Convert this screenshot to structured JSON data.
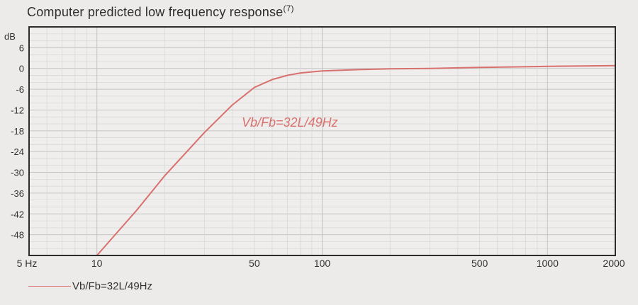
{
  "title": {
    "text": "Computer predicted low frequency response",
    "superscript": "(7)"
  },
  "chart_data": {
    "type": "line",
    "title": "Computer predicted low frequency response(7)",
    "ylabel": "dB",
    "xlabel": "",
    "x_scale": "log",
    "xlim": [
      5,
      2000
    ],
    "ylim": [
      -54,
      12
    ],
    "grid": true,
    "legend_placement": "bottom-left",
    "y_ticks": [
      6,
      0,
      -6,
      -12,
      -18,
      -24,
      -30,
      -36,
      -42,
      -48
    ],
    "y_tick_labels": [
      "6",
      "0",
      "-6",
      "-12",
      "-18",
      "-24",
      "-30",
      "-36",
      "-42",
      "-48"
    ],
    "x_ticks": [
      5,
      10,
      50,
      100,
      500,
      1000,
      2000
    ],
    "x_tick_labels": [
      "5 Hz",
      "10",
      "50",
      "100",
      "500",
      "1000",
      "2000"
    ],
    "annotation": "Vb/Fb=32L/49Hz",
    "series": [
      {
        "name": "Vb/Fb=32L/49Hz",
        "color": "#d8706e",
        "x": [
          10,
          15,
          20,
          30,
          40,
          50,
          60,
          70,
          80,
          100,
          150,
          200,
          300,
          500,
          1000,
          2000
        ],
        "y": [
          -54,
          -41,
          -31,
          -18.5,
          -10.5,
          -5.5,
          -3.2,
          -2,
          -1.3,
          -0.7,
          -0.3,
          -0.1,
          0,
          0.3,
          0.6,
          0.8
        ]
      }
    ]
  }
}
